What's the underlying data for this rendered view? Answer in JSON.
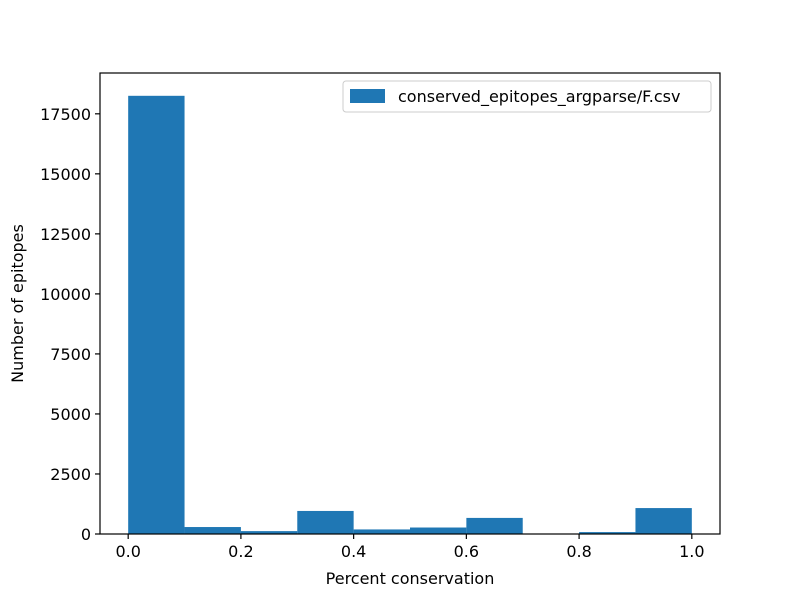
{
  "chart_data": {
    "type": "bar",
    "bins": [
      {
        "x0": 0.0,
        "x1": 0.1,
        "count": 18250
      },
      {
        "x0": 0.1,
        "x1": 0.2,
        "count": 290
      },
      {
        "x0": 0.2,
        "x1": 0.3,
        "count": 120
      },
      {
        "x0": 0.3,
        "x1": 0.4,
        "count": 960
      },
      {
        "x0": 0.4,
        "x1": 0.5,
        "count": 190
      },
      {
        "x0": 0.5,
        "x1": 0.6,
        "count": 270
      },
      {
        "x0": 0.6,
        "x1": 0.7,
        "count": 670
      },
      {
        "x0": 0.7,
        "x1": 0.8,
        "count": 0
      },
      {
        "x0": 0.8,
        "x1": 0.9,
        "count": 80
      },
      {
        "x0": 0.9,
        "x1": 1.0,
        "count": 1080
      }
    ],
    "title": "",
    "xlabel": "Percent conservation",
    "ylabel": "Number of epitopes",
    "xlim": [
      -0.05,
      1.05
    ],
    "ylim": [
      0,
      19200
    ],
    "x_ticks": [
      0.0,
      0.2,
      0.4,
      0.6,
      0.8,
      1.0
    ],
    "x_tick_labels": [
      "0.0",
      "0.2",
      "0.4",
      "0.6",
      "0.8",
      "1.0"
    ],
    "y_ticks": [
      0,
      2500,
      5000,
      7500,
      10000,
      12500,
      15000,
      17500
    ],
    "y_tick_labels": [
      "0",
      "2500",
      "5000",
      "7500",
      "10000",
      "12500",
      "15000",
      "17500"
    ],
    "grid": false,
    "legend": {
      "placement": "top-right",
      "entries": [
        {
          "label": "conserved_epitopes_argparse/F.csv",
          "color": "#1f77b4"
        }
      ]
    },
    "bar_color": "#1f77b4"
  }
}
